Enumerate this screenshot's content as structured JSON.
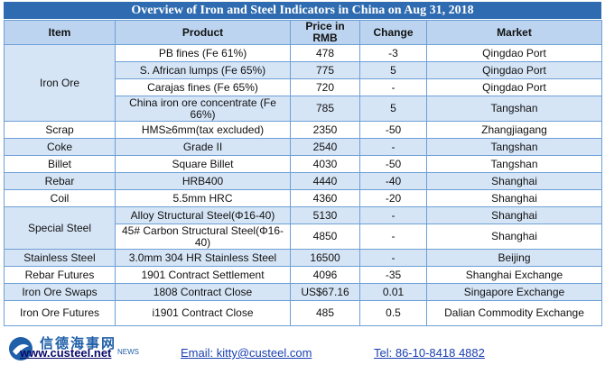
{
  "title": "Overview of Iron and Steel Indicators in China on Aug 31, 2018",
  "headers": [
    "Item",
    "Product",
    "Price in RMB",
    "Change",
    "Market"
  ],
  "rows": {
    "r0": {
      "item": "Iron Ore",
      "product": "PB fines (Fe 61%)",
      "price": "478",
      "change": "-3",
      "market": "Qingdao Port"
    },
    "r1": {
      "product": "S. African lumps (Fe 65%)",
      "price": "775",
      "change": "5",
      "market": "Qingdao Port"
    },
    "r2": {
      "product": "Carajas fines (Fe 65%)",
      "price": "720",
      "change": "-",
      "market": "Qingdao Port"
    },
    "r3": {
      "product": "China iron ore concentrate (Fe 66%)",
      "price": "785",
      "change": "5",
      "market": "Tangshan"
    },
    "r4": {
      "item": "Scrap",
      "product": "HMS≥6mm(tax excluded)",
      "price": "2350",
      "change": "-50",
      "market": "Zhangjiagang"
    },
    "r5": {
      "item": "Coke",
      "product": "Grade II",
      "price": "2540",
      "change": "-",
      "market": "Tangshan"
    },
    "r6": {
      "item": "Billet",
      "product": "Square Billet",
      "price": "4030",
      "change": "-50",
      "market": "Tangshan"
    },
    "r7": {
      "item": "Rebar",
      "product": "HRB400",
      "price": "4440",
      "change": "-40",
      "market": "Shanghai"
    },
    "r8": {
      "item": "Coil",
      "product": "5.5mm HRC",
      "price": "4360",
      "change": "-20",
      "market": "Shanghai"
    },
    "r9": {
      "item": "Special Steel",
      "product": "Alloy Structural Steel(Φ16-40)",
      "price": "5130",
      "change": "-",
      "market": "Shanghai"
    },
    "r10": {
      "product": "45# Carbon Structural Steel(Φ16-40)",
      "price": "4850",
      "change": "-",
      "market": "Shanghai"
    },
    "r11": {
      "item": "Stainless Steel",
      "product": "3.0mm 304 HR Stainless Steel",
      "price": "16500",
      "change": "-",
      "market": "Beijing"
    },
    "r12": {
      "item": "Rebar Futures",
      "product": "1901 Contract Settlement",
      "price": "4096",
      "change": "-35",
      "market": "Shanghai Exchange"
    },
    "r13": {
      "item": "Iron Ore Swaps",
      "product": "1808 Contract Close",
      "price": "US$67.16",
      "change": "0.01",
      "market": "Singapore Exchange"
    },
    "r14": {
      "item": "Iron Ore Futures",
      "product": "i1901 Contract Close",
      "price": "485",
      "change": "0.5",
      "market": "Dalian Commodity Exchange"
    }
  },
  "footer": {
    "logo_cn": "信德海事网",
    "logo_news": "NEWS",
    "website": "www.custeel.net",
    "email": "Email: kitty@custeel.com",
    "tel": "Tel: 86-10-8418 4882"
  },
  "colors": {
    "title_bg": "#2e6bb0",
    "band": "#d6e5f6",
    "header": "#bcd4ef",
    "border": "#6d9fd6"
  }
}
